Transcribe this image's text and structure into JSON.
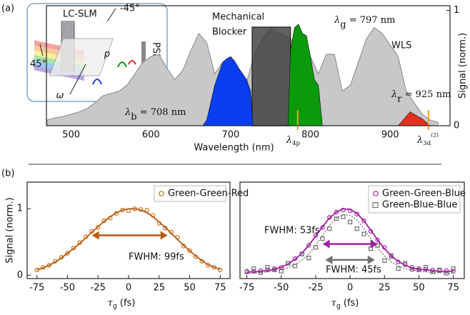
{
  "chart_data": [
    {
      "type": "area",
      "panel_label": "(a)",
      "xlabel": "Wavelength (nm)",
      "ylabel": "Signal (norm.)",
      "xlim": [
        469,
        975
      ],
      "ylim": [
        0,
        1.04
      ],
      "xticks": [
        500,
        600,
        700,
        800,
        900
      ],
      "yticks": [
        0,
        1
      ],
      "y_axis_side": "right",
      "series": [
        {
          "name": "WLS",
          "color": "#c8c8c8",
          "x": [
            470,
            480,
            490,
            500,
            510,
            520,
            530,
            540,
            550,
            560,
            570,
            580,
            590,
            600,
            610,
            620,
            630,
            640,
            650,
            660,
            670,
            680,
            690,
            700,
            710,
            720,
            730,
            740,
            750,
            760,
            770,
            780,
            790,
            800,
            810,
            820,
            830,
            840,
            850,
            860,
            870,
            880,
            890,
            900,
            910,
            920,
            930,
            940,
            950,
            960
          ],
          "values": [
            0.05,
            0.07,
            0.08,
            0.1,
            0.12,
            0.15,
            0.2,
            0.26,
            0.28,
            0.3,
            0.35,
            0.45,
            0.55,
            0.6,
            0.62,
            0.5,
            0.4,
            0.48,
            0.65,
            0.8,
            0.72,
            0.45,
            0.55,
            0.58,
            0.48,
            0.38,
            0.62,
            0.75,
            0.85,
            0.8,
            0.78,
            0.72,
            0.78,
            0.6,
            0.45,
            0.62,
            0.62,
            0.3,
            0.35,
            0.55,
            0.75,
            0.85,
            0.8,
            0.7,
            0.6,
            0.3,
            0.2,
            0.1,
            0.05,
            0.03
          ]
        },
        {
          "color": "#0a3cf0",
          "x": [
            665,
            670,
            675,
            680,
            685,
            690,
            695,
            700,
            705,
            710,
            715,
            720,
            725,
            728
          ],
          "values": [
            0,
            0.05,
            0.2,
            0.35,
            0.45,
            0.55,
            0.58,
            0.6,
            0.56,
            0.5,
            0.45,
            0.4,
            0.3,
            0
          ]
        },
        {
          "color": "#0a9a0a",
          "x": [
            772,
            775,
            780,
            785,
            790,
            795,
            800,
            805,
            810,
            815
          ],
          "values": [
            0,
            0.65,
            0.85,
            0.88,
            0.8,
            0.78,
            0.6,
            0.4,
            0.35,
            0
          ]
        },
        {
          "color": "#e0301e",
          "x": [
            910,
            915,
            920,
            925,
            930,
            935,
            940,
            945,
            950
          ],
          "values": [
            0,
            0.04,
            0.08,
            0.12,
            0.1,
            0.08,
            0.06,
            0.03,
            0
          ]
        }
      ],
      "blocker": {
        "label_lines": [
          "Mechanical",
          "Blocker"
        ],
        "range": [
          727,
          775
        ]
      },
      "annotations": [
        {
          "symbol": "λ",
          "sub": "b",
          "text": " = 708 nm",
          "color": "#1a3cf0"
        },
        {
          "symbol": "λ",
          "sub": "g",
          "text": " = 797 nm",
          "color": "#0a9a0a"
        },
        {
          "symbol": "λ",
          "sub": "r",
          "text": " = 925 nm",
          "color": "#e0301e"
        }
      ],
      "markers": [
        {
          "symbol": "λ",
          "sub": "4p",
          "x": 784,
          "color": "#f0a030"
        },
        {
          "symbol": "λ",
          "sub": "3d",
          "sup": "(2)",
          "x": 948,
          "color": "#f0a030"
        }
      ],
      "inset_labels": [
        "LC-SLM",
        "-45°",
        "45°",
        "p",
        "PSD",
        "ω"
      ]
    },
    {
      "type": "scatter",
      "panel_label": "(b)",
      "ylabel": "Signal (norm.)",
      "xlabel": {
        "symbol": "τ",
        "sub": "g",
        "text": " (fs)"
      },
      "xlim": [
        -83,
        83
      ],
      "ylim": [
        -0.05,
        1.4
      ],
      "xticks": [
        -75,
        -50,
        -25,
        0,
        25,
        50,
        75
      ],
      "yticks": [
        0,
        1
      ],
      "legend": "upper right",
      "series": [
        {
          "name": "Green-Green-Red",
          "color": "#c87010",
          "marker": "circle",
          "x": [
            -75,
            -70,
            -65,
            -60,
            -55,
            -50,
            -45,
            -40,
            -35,
            -30,
            -25,
            -20,
            -15,
            -10,
            -5,
            0,
            5,
            10,
            15,
            20,
            25,
            30,
            35,
            40,
            45,
            50,
            55,
            60,
            65,
            70,
            75
          ],
          "values": [
            0.08,
            0.12,
            0.15,
            0.21,
            0.27,
            0.33,
            0.41,
            0.49,
            0.58,
            0.66,
            0.72,
            0.82,
            0.86,
            0.93,
            0.98,
            0.97,
            1.0,
            0.99,
            0.98,
            0.9,
            0.78,
            0.71,
            0.65,
            0.57,
            0.44,
            0.37,
            0.28,
            0.21,
            0.15,
            0.12,
            0.08
          ]
        },
        {
          "color": "#b85a10",
          "line": "solid",
          "x": [
            -75,
            -70,
            -65,
            -60,
            -55,
            -50,
            -45,
            -40,
            -35,
            -30,
            -25,
            -20,
            -15,
            -10,
            -5,
            0,
            5,
            10,
            15,
            20,
            25,
            30,
            35,
            40,
            45,
            50,
            55,
            60,
            65,
            70,
            75
          ],
          "values": [
            0.08,
            0.11,
            0.15,
            0.2,
            0.26,
            0.33,
            0.4,
            0.48,
            0.56,
            0.65,
            0.73,
            0.81,
            0.88,
            0.94,
            0.98,
            1.0,
            1.0,
            0.98,
            0.94,
            0.88,
            0.8,
            0.72,
            0.63,
            0.54,
            0.45,
            0.37,
            0.29,
            0.22,
            0.16,
            0.12,
            0.09
          ]
        }
      ],
      "annotations": [
        {
          "text": "FWHM: 99fs",
          "color": "#111111"
        }
      ]
    },
    {
      "type": "scatter",
      "xlabel": {
        "symbol": "τ",
        "sub": "g",
        "text": " (fs)"
      },
      "xlim": [
        -80,
        83
      ],
      "ylim": [
        -0.05,
        1.4
      ],
      "xticks": [
        -75,
        -50,
        -25,
        0,
        25,
        50,
        75
      ],
      "legend": "upper right",
      "series": [
        {
          "name": "Green-Green-Blue",
          "color": "#a020a0",
          "marker": "circle",
          "x": [
            -75,
            -70,
            -65,
            -60,
            -55,
            -50,
            -45,
            -40,
            -35,
            -30,
            -25,
            -20,
            -15,
            -10,
            -5,
            0,
            5,
            10,
            15,
            20,
            25,
            30,
            35,
            40,
            45,
            50,
            55,
            60,
            65,
            70,
            75
          ],
          "values": [
            0.06,
            0.06,
            0.07,
            0.08,
            0.1,
            0.12,
            0.18,
            0.25,
            0.32,
            0.45,
            0.6,
            0.72,
            0.87,
            0.95,
            0.98,
            0.97,
            0.92,
            0.82,
            0.66,
            0.53,
            0.42,
            0.3,
            0.2,
            0.16,
            0.12,
            0.1,
            0.09,
            0.08,
            0.07,
            0.07,
            0.06
          ]
        },
        {
          "name": "Green-Blue-Blue",
          "color": "#707070",
          "marker": "square",
          "x": [
            -75,
            -70,
            -65,
            -60,
            -55,
            -50,
            -45,
            -40,
            -35,
            -30,
            -25,
            -20,
            -15,
            -10,
            -5,
            0,
            5,
            10,
            15,
            20,
            25,
            30,
            35,
            40,
            45,
            50,
            55,
            60,
            65,
            70,
            75
          ],
          "values": [
            0.05,
            0.1,
            0.04,
            0.12,
            0.08,
            0.06,
            0.18,
            0.14,
            0.32,
            0.26,
            0.42,
            0.55,
            0.7,
            0.85,
            0.88,
            0.8,
            0.7,
            0.62,
            0.4,
            0.45,
            0.22,
            0.28,
            0.1,
            0.18,
            0.09,
            0.08,
            0.12,
            0.05,
            0.08,
            0.03,
            0.1
          ]
        },
        {
          "color": "#a020a0",
          "line": "solid",
          "x": [
            -75,
            -70,
            -65,
            -60,
            -55,
            -50,
            -45,
            -40,
            -35,
            -30,
            -25,
            -20,
            -15,
            -10,
            -5,
            0,
            5,
            10,
            15,
            20,
            25,
            30,
            35,
            40,
            45,
            50,
            55,
            60,
            65,
            70,
            75
          ],
          "values": [
            0.05,
            0.05,
            0.06,
            0.07,
            0.09,
            0.12,
            0.17,
            0.24,
            0.33,
            0.45,
            0.59,
            0.73,
            0.86,
            0.95,
            1.0,
            0.99,
            0.93,
            0.82,
            0.68,
            0.53,
            0.4,
            0.29,
            0.21,
            0.15,
            0.11,
            0.09,
            0.08,
            0.07,
            0.06,
            0.06,
            0.06
          ]
        },
        {
          "color": "#707070",
          "line": "dotted",
          "x": [
            -75,
            -70,
            -65,
            -60,
            -55,
            -50,
            -45,
            -40,
            -35,
            -30,
            -25,
            -20,
            -15,
            -10,
            -5,
            0,
            5,
            10,
            15,
            20,
            25,
            30,
            35,
            40,
            45,
            50,
            55,
            60,
            65,
            70,
            75
          ],
          "values": [
            0.03,
            0.03,
            0.04,
            0.05,
            0.06,
            0.08,
            0.11,
            0.16,
            0.23,
            0.32,
            0.45,
            0.6,
            0.75,
            0.86,
            0.91,
            0.9,
            0.83,
            0.7,
            0.55,
            0.41,
            0.29,
            0.2,
            0.14,
            0.1,
            0.08,
            0.06,
            0.05,
            0.04,
            0.04,
            0.03,
            0.03
          ]
        }
      ],
      "annotations": [
        {
          "text": "FWHM: 53fs",
          "color": "#a020a0"
        },
        {
          "text": "FWHM: 45fs",
          "color": "#707070"
        }
      ]
    }
  ]
}
